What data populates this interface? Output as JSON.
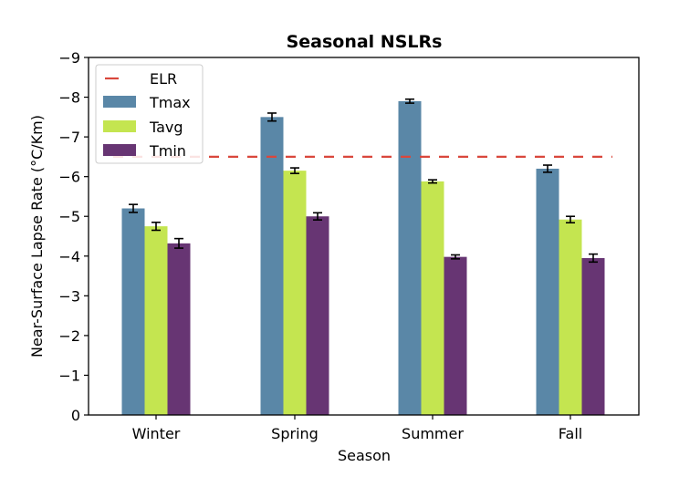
{
  "chart_data": {
    "type": "bar",
    "title": "Seasonal NSLRs",
    "xlabel": "Season",
    "ylabel": "Near-Surface Lapse Rate (°C/Km)",
    "ylim": [
      0,
      -9
    ],
    "y_axis_inverted": true,
    "yticks": [
      0,
      -1,
      -2,
      -3,
      -4,
      -5,
      -6,
      -7,
      -8,
      -9
    ],
    "ytick_labels": [
      "0",
      "−1",
      "−2",
      "−3",
      "−4",
      "−5",
      "−6",
      "−7",
      "−8",
      "−9"
    ],
    "categories": [
      "Winter",
      "Spring",
      "Summer",
      "Fall"
    ],
    "grid": false,
    "legend_position": "top-left",
    "series": [
      {
        "name": "Tmax",
        "color": "#5a87a7",
        "values": [
          -5.2,
          -7.5,
          -7.9,
          -6.2
        ],
        "errors": [
          0.1,
          0.1,
          0.05,
          0.09
        ]
      },
      {
        "name": "Tavg",
        "color": "#c4e550",
        "values": [
          -4.75,
          -6.15,
          -5.88,
          -4.92
        ],
        "errors": [
          0.1,
          0.07,
          0.04,
          0.08
        ]
      },
      {
        "name": "Tmin",
        "color": "#673573",
        "values": [
          -4.32,
          -5.0,
          -3.98,
          -3.95
        ],
        "errors": [
          0.12,
          0.09,
          0.05,
          0.1
        ]
      }
    ],
    "reference_lines": [
      {
        "name": "ELR",
        "value": -6.5,
        "color": "#d9473c",
        "style": "dashed"
      }
    ]
  }
}
